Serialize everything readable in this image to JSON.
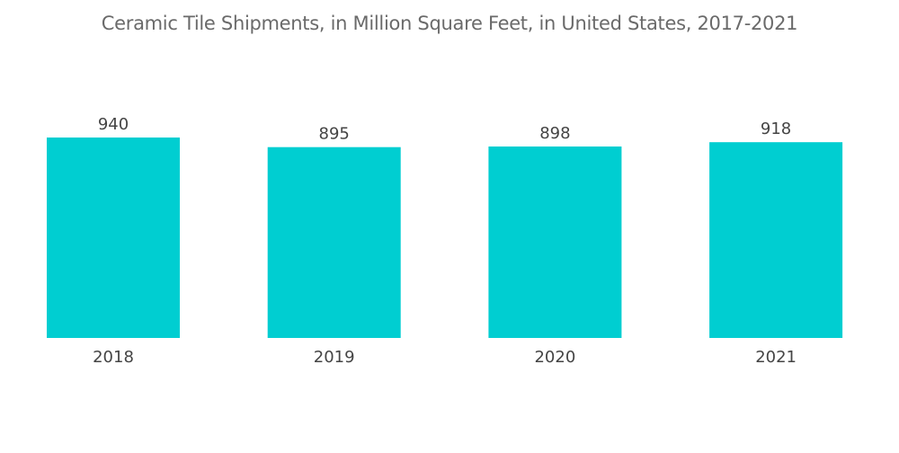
{
  "chart_data": {
    "type": "bar",
    "title": "Ceramic Tile Shipments, in Million Square Feet, in United States, 2017-2021",
    "categories": [
      "2018",
      "2019",
      "2020",
      "2021"
    ],
    "values": [
      940,
      895,
      898,
      918
    ],
    "data_labels": [
      "940",
      "895",
      "898",
      "918"
    ],
    "xlabel": "",
    "ylabel": "",
    "ylim": [
      0,
      940
    ],
    "grid": false,
    "legend": "none",
    "colors": {
      "bar": "#00ced1",
      "text": "#444444",
      "title": "#6a6a6a"
    }
  }
}
